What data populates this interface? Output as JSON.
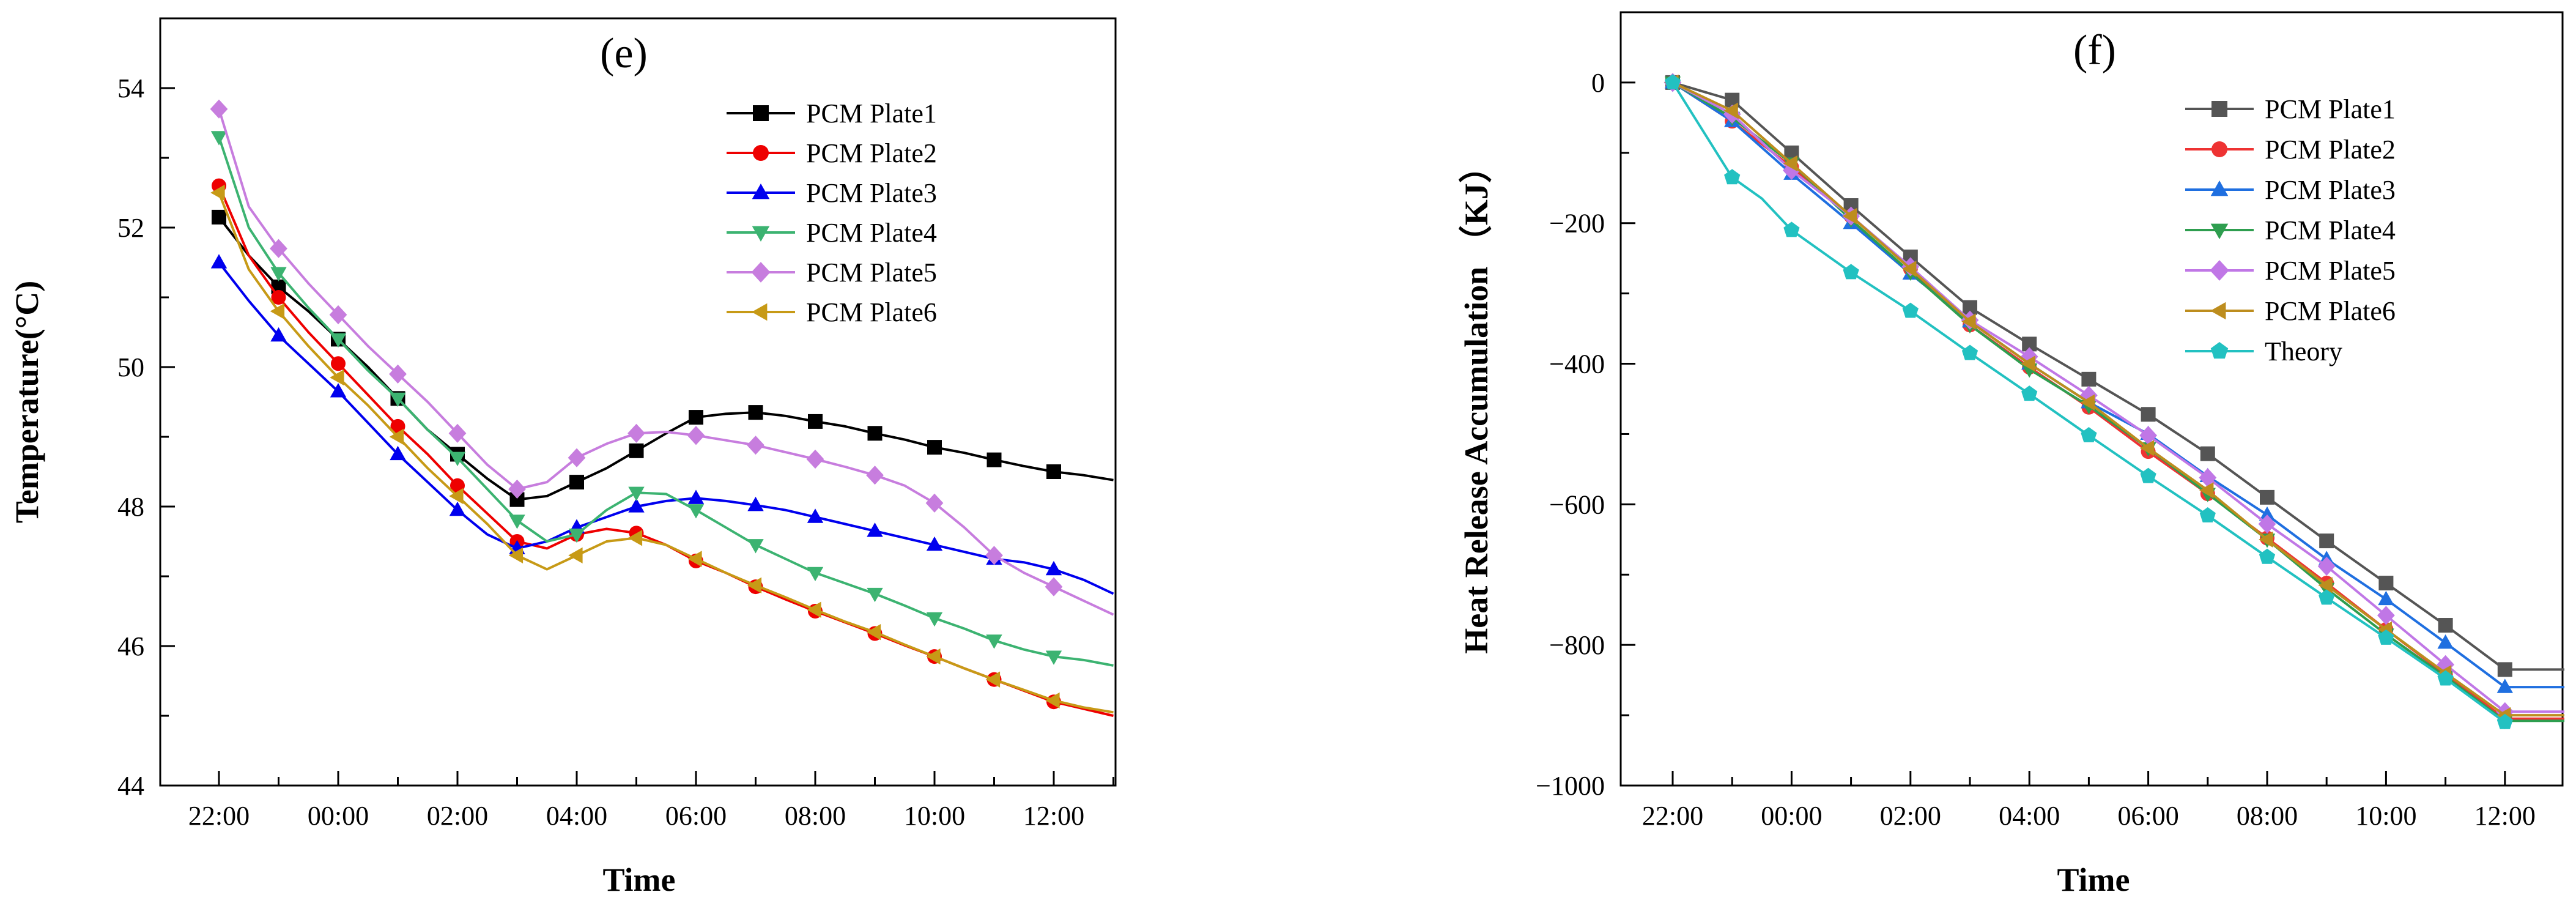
{
  "chart_data": [
    {
      "type": "line",
      "panel_label": "(e)",
      "title": "",
      "xlabel": "Time",
      "ylabel": "Temperature(°C)",
      "x_ticks": [
        "22:00",
        "00:00",
        "02:00",
        "04:00",
        "06:00",
        "08:00",
        "10:00",
        "12:00"
      ],
      "x_range": [
        -1,
        15
      ],
      "ylim": [
        44,
        55
      ],
      "y_ticks": [
        44,
        46,
        48,
        50,
        52,
        54
      ],
      "grid": false,
      "legend_position": "top-right",
      "series": [
        {
          "name": "PCM Plate1",
          "color": "#000000",
          "marker": "square",
          "x": [
            0,
            0.5,
            1,
            1.5,
            2,
            2.5,
            3,
            3.5,
            4,
            4.5,
            5,
            5.5,
            6,
            6.5,
            7,
            7.5,
            8,
            8.5,
            9,
            9.5,
            10,
            10.5,
            11,
            11.5,
            12,
            12.5,
            13,
            13.5,
            14,
            14.5,
            15
          ],
          "values": [
            52.15,
            51.6,
            51.15,
            50.8,
            50.4,
            50.0,
            49.55,
            49.1,
            48.75,
            48.4,
            48.1,
            48.15,
            48.35,
            48.55,
            48.8,
            49.05,
            49.28,
            49.33,
            49.35,
            49.3,
            49.22,
            49.15,
            49.05,
            48.96,
            48.85,
            48.77,
            48.67,
            48.58,
            48.5,
            48.45,
            48.38
          ],
          "marker_every": 2
        },
        {
          "name": "PCM Plate2",
          "color": "#ee0000",
          "marker": "circle",
          "x": [
            0,
            0.5,
            1,
            1.5,
            2,
            2.5,
            3,
            3.5,
            4,
            4.5,
            5,
            5.5,
            6,
            6.5,
            7,
            7.5,
            8,
            8.5,
            9,
            9.5,
            10,
            10.5,
            11,
            11.5,
            12,
            12.5,
            13,
            13.5,
            14,
            14.5,
            15
          ],
          "values": [
            52.6,
            51.6,
            51.0,
            50.5,
            50.05,
            49.6,
            49.15,
            48.75,
            48.3,
            47.9,
            47.5,
            47.4,
            47.6,
            47.68,
            47.62,
            47.45,
            47.22,
            47.05,
            46.85,
            46.67,
            46.5,
            46.34,
            46.18,
            46.01,
            45.85,
            45.68,
            45.52,
            45.36,
            45.2,
            45.1,
            45.0
          ],
          "marker_every": 2
        },
        {
          "name": "PCM Plate3",
          "color": "#0000ee",
          "marker": "triangle-up",
          "x": [
            0,
            0.5,
            1,
            1.5,
            2,
            2.5,
            3,
            3.5,
            4,
            4.5,
            5,
            5.5,
            6,
            6.5,
            7,
            7.5,
            8,
            8.5,
            9,
            9.5,
            10,
            10.5,
            11,
            11.5,
            12,
            12.5,
            13,
            13.5,
            14,
            14.5,
            15
          ],
          "values": [
            51.5,
            50.95,
            50.45,
            50.05,
            49.65,
            49.2,
            48.75,
            48.35,
            47.95,
            47.6,
            47.4,
            47.5,
            47.7,
            47.85,
            48.0,
            48.08,
            48.12,
            48.08,
            48.02,
            47.95,
            47.85,
            47.75,
            47.65,
            47.55,
            47.45,
            47.35,
            47.25,
            47.2,
            47.1,
            46.95,
            46.75
          ],
          "marker_every": 2
        },
        {
          "name": "PCM Plate4",
          "color": "#3cb371",
          "marker": "triangle-down",
          "x": [
            0,
            0.5,
            1,
            1.5,
            2,
            2.5,
            3,
            3.5,
            4,
            4.5,
            5,
            5.5,
            6,
            6.5,
            7,
            7.5,
            8,
            8.5,
            9,
            9.5,
            10,
            10.5,
            11,
            11.5,
            12,
            12.5,
            13,
            13.5,
            14,
            14.5,
            15
          ],
          "values": [
            53.3,
            52.0,
            51.35,
            50.85,
            50.4,
            49.95,
            49.55,
            49.1,
            48.7,
            48.25,
            47.8,
            47.5,
            47.6,
            47.95,
            48.2,
            48.18,
            47.95,
            47.7,
            47.45,
            47.25,
            47.05,
            46.9,
            46.75,
            46.58,
            46.4,
            46.25,
            46.08,
            45.95,
            45.85,
            45.8,
            45.72
          ],
          "marker_every": 2
        },
        {
          "name": "PCM Plate5",
          "color": "#c77dde",
          "marker": "diamond",
          "x": [
            0,
            0.5,
            1,
            1.5,
            2,
            2.5,
            3,
            3.5,
            4,
            4.5,
            5,
            5.5,
            6,
            6.5,
            7,
            7.5,
            8,
            8.5,
            9,
            9.5,
            10,
            10.5,
            11,
            11.5,
            12,
            12.5,
            13,
            13.5,
            14,
            14.5,
            15
          ],
          "values": [
            53.7,
            52.3,
            51.7,
            51.2,
            50.75,
            50.3,
            49.9,
            49.5,
            49.05,
            48.6,
            48.25,
            48.35,
            48.7,
            48.9,
            49.05,
            49.07,
            49.02,
            48.95,
            48.88,
            48.78,
            48.68,
            48.57,
            48.45,
            48.3,
            48.05,
            47.7,
            47.3,
            47.05,
            46.85,
            46.65,
            46.45
          ],
          "marker_every": 2
        },
        {
          "name": "PCM Plate6",
          "color": "#c79a16",
          "marker": "triangle-left",
          "x": [
            0,
            0.5,
            1,
            1.5,
            2,
            2.5,
            3,
            3.5,
            4,
            4.5,
            5,
            5.5,
            6,
            6.5,
            7,
            7.5,
            8,
            8.5,
            9,
            9.5,
            10,
            10.5,
            11,
            11.5,
            12,
            12.5,
            13,
            13.5,
            14,
            14.5,
            15
          ],
          "values": [
            52.5,
            51.4,
            50.8,
            50.3,
            49.85,
            49.45,
            49.0,
            48.55,
            48.15,
            47.75,
            47.3,
            47.1,
            47.3,
            47.5,
            47.55,
            47.45,
            47.25,
            47.05,
            46.87,
            46.7,
            46.52,
            46.35,
            46.2,
            46.02,
            45.85,
            45.68,
            45.52,
            45.37,
            45.22,
            45.12,
            45.05
          ],
          "marker_every": 2
        }
      ],
      "legend_entries": [
        "PCM Plate1",
        "PCM Plate2",
        "PCM Plate3",
        "PCM Plate4",
        "PCM Plate5",
        "PCM Plate6"
      ]
    },
    {
      "type": "line",
      "panel_label": "(f)",
      "title": "",
      "xlabel": "Time",
      "ylabel": "Heat Release Accumulation （KJ）",
      "x_ticks": [
        "22:00",
        "00:00",
        "02:00",
        "04:00",
        "06:00",
        "08:00",
        "10:00",
        "12:00"
      ],
      "x_range": [
        -1,
        15
      ],
      "ylim": [
        -1000,
        100
      ],
      "y_ticks": [
        0,
        -200,
        -400,
        -600,
        -800,
        -1000
      ],
      "grid": false,
      "legend_position": "top-right",
      "series": [
        {
          "name": "PCM Plate1",
          "color": "#555555",
          "marker": "square",
          "x": [
            0,
            1,
            2,
            3,
            4,
            5,
            6,
            7,
            8,
            9,
            10,
            11,
            12,
            13,
            14,
            15
          ],
          "values": [
            0,
            -25,
            -100,
            -175,
            -248,
            -320,
            -372,
            -422,
            -472,
            -528,
            -590,
            -652,
            -712,
            -772,
            -835,
            -835
          ]
        },
        {
          "name": "PCM Plate2",
          "color": "#ee3333",
          "marker": "circle",
          "x": [
            0,
            1,
            2,
            3,
            4,
            5,
            6,
            7,
            8,
            9,
            10,
            11,
            12,
            13,
            14,
            15
          ],
          "values": [
            0,
            -55,
            -120,
            -190,
            -265,
            -345,
            -405,
            -462,
            -525,
            -585,
            -648,
            -712,
            -778,
            -842,
            -905,
            -905
          ]
        },
        {
          "name": "PCM Plate3",
          "color": "#1f6fe0",
          "marker": "triangle-up",
          "x": [
            0,
            1,
            2,
            3,
            4,
            5,
            6,
            7,
            8,
            9,
            10,
            11,
            12,
            13,
            14,
            15
          ],
          "values": [
            0,
            -55,
            -130,
            -200,
            -272,
            -340,
            -400,
            -455,
            -500,
            -560,
            -615,
            -678,
            -735,
            -797,
            -860,
            -860
          ]
        },
        {
          "name": "PCM Plate4",
          "color": "#2e9e4f",
          "marker": "triangle-down",
          "x": [
            0,
            1,
            2,
            3,
            4,
            5,
            6,
            7,
            8,
            9,
            10,
            11,
            12,
            13,
            14,
            15
          ],
          "values": [
            0,
            -50,
            -115,
            -195,
            -270,
            -345,
            -408,
            -460,
            -520,
            -585,
            -650,
            -720,
            -785,
            -845,
            -908,
            -908
          ]
        },
        {
          "name": "PCM Plate5",
          "color": "#c077e6",
          "marker": "diamond",
          "x": [
            0,
            1,
            2,
            3,
            4,
            5,
            6,
            7,
            8,
            9,
            10,
            11,
            12,
            13,
            14,
            15
          ],
          "values": [
            0,
            -45,
            -125,
            -190,
            -262,
            -338,
            -390,
            -445,
            -502,
            -562,
            -628,
            -688,
            -758,
            -828,
            -895,
            -895
          ]
        },
        {
          "name": "PCM Plate6",
          "color": "#bd8d1e",
          "marker": "triangle-left",
          "x": [
            0,
            1,
            2,
            3,
            4,
            5,
            6,
            7,
            8,
            9,
            10,
            11,
            12,
            13,
            14,
            15
          ],
          "values": [
            0,
            -40,
            -115,
            -190,
            -265,
            -340,
            -400,
            -455,
            -520,
            -580,
            -650,
            -715,
            -778,
            -840,
            -900,
            -900
          ]
        },
        {
          "name": "Theory",
          "color": "#22c1c1",
          "marker": "pentagon",
          "x": [
            0,
            1,
            1.5,
            2,
            3,
            4,
            5,
            6,
            7,
            8,
            9,
            10,
            11,
            12,
            13,
            14
          ],
          "values": [
            0,
            -135,
            -165,
            -210,
            -270,
            -325,
            -385,
            -443,
            -502,
            -560,
            -616,
            -675,
            -733,
            -790,
            -848,
            -910
          ]
        }
      ],
      "legend_entries": [
        "PCM Plate1",
        "PCM Plate2",
        "PCM Plate3",
        "PCM Plate4",
        "PCM Plate5",
        "PCM Plate6",
        "Theory"
      ]
    }
  ]
}
